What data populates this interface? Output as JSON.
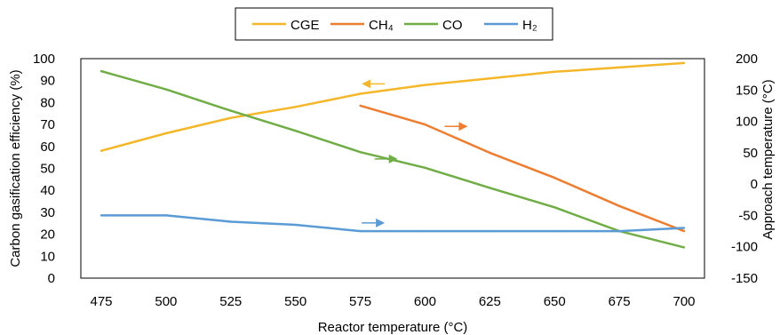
{
  "chart_data": {
    "type": "line",
    "title": "",
    "xlabel": "Reactor temperature (°C)",
    "ylabel_left": "Carbon gasification efficiency (%)",
    "ylabel_right": "Approach temperature  (°C)",
    "x_ticks": [
      475,
      500,
      525,
      550,
      575,
      600,
      625,
      650,
      675,
      700
    ],
    "y_left_ticks": [
      0,
      10,
      20,
      30,
      40,
      50,
      60,
      70,
      80,
      90,
      100
    ],
    "y_right_ticks": [
      -150,
      -100,
      -50,
      0,
      50,
      100,
      150,
      200
    ],
    "x_range": [
      475,
      700
    ],
    "y_left_range": [
      0,
      100
    ],
    "y_right_range": [
      -150,
      200
    ],
    "grid": false,
    "legend_position": "top-center",
    "series": [
      {
        "name": "CGE",
        "axis": "left",
        "color": "#F5B72A",
        "x": [
          475,
          500,
          525,
          550,
          575,
          600,
          625,
          650,
          675,
          700
        ],
        "y": [
          58,
          66,
          73,
          78,
          84,
          88,
          91,
          94,
          96,
          98
        ],
        "arrow": {
          "x": 580,
          "y": 88.5,
          "direction": "left"
        }
      },
      {
        "name": "CH₄",
        "axis": "right",
        "color": "#ED7D31",
        "x": [
          575,
          600,
          625,
          650,
          675,
          700
        ],
        "y": [
          125,
          95,
          50,
          10,
          -35,
          -75
        ],
        "arrow": {
          "x": 612,
          "y": 92,
          "direction": "right"
        }
      },
      {
        "name": "CO",
        "axis": "right",
        "color": "#70AD47",
        "x": [
          475,
          500,
          525,
          550,
          575,
          600,
          625,
          650,
          675,
          700
        ],
        "y": [
          180,
          151,
          117,
          85,
          51,
          26,
          -6,
          -37,
          -75,
          -101
        ],
        "arrow": {
          "x": 585,
          "y": 40,
          "direction": "right"
        }
      },
      {
        "name": "H₂",
        "axis": "right",
        "color": "#5B9BD5",
        "x": [
          475,
          500,
          525,
          550,
          575,
          600,
          625,
          650,
          675,
          700
        ],
        "y": [
          -50,
          -50,
          -60,
          -65,
          -75,
          -75,
          -75,
          -75,
          -75,
          -70
        ],
        "arrow": {
          "x": 580,
          "y": -62,
          "direction": "right"
        }
      }
    ]
  }
}
